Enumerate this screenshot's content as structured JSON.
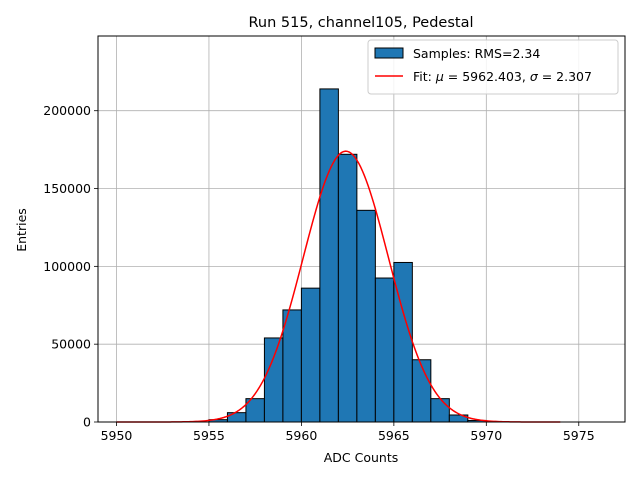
{
  "chart_data": {
    "type": "histogram",
    "title": "Run 515, channel105, Pedestal",
    "xlabel": "ADC Counts",
    "ylabel": "Entries",
    "xlim": [
      5949,
      5977.5
    ],
    "ylim": [
      0,
      248000
    ],
    "xticks": [
      5950,
      5955,
      5960,
      5965,
      5970,
      5975
    ],
    "yticks": [
      0,
      50000,
      100000,
      150000,
      200000
    ],
    "grid": true,
    "legend_position": "top-right",
    "bin_width": 1,
    "bins": [
      {
        "x0": 5955,
        "count": 1500
      },
      {
        "x0": 5956,
        "count": 6000
      },
      {
        "x0": 5957,
        "count": 15000
      },
      {
        "x0": 5958,
        "count": 54000
      },
      {
        "x0": 5959,
        "count": 72000
      },
      {
        "x0": 5960,
        "count": 86000
      },
      {
        "x0": 5961,
        "count": 214000
      },
      {
        "x0": 5962,
        "count": 172000
      },
      {
        "x0": 5963,
        "count": 136000
      },
      {
        "x0": 5964,
        "count": 92500
      },
      {
        "x0": 5965,
        "count": 102500
      },
      {
        "x0": 5966,
        "count": 40000
      },
      {
        "x0": 5967,
        "count": 15000
      },
      {
        "x0": 5968,
        "count": 4500
      },
      {
        "x0": 5969,
        "count": 1000
      }
    ],
    "fit": {
      "mu": 5962.403,
      "sigma": 2.307,
      "amplitude": 174000,
      "x_range": [
        5950,
        5974
      ]
    },
    "legend": [
      {
        "type": "patch",
        "label": "Samples: RMS=2.34"
      },
      {
        "type": "line",
        "label_prefix": "Fit: ",
        "mu_symbol": "μ",
        "mu_text": " = 5962.403, ",
        "sigma_symbol": "σ",
        "sigma_text": " = 2.307"
      }
    ],
    "colors": {
      "bar": "#1f77b4",
      "bar_edge": "#000000",
      "fit": "#ff0000",
      "grid": "#b0b0b0"
    }
  }
}
